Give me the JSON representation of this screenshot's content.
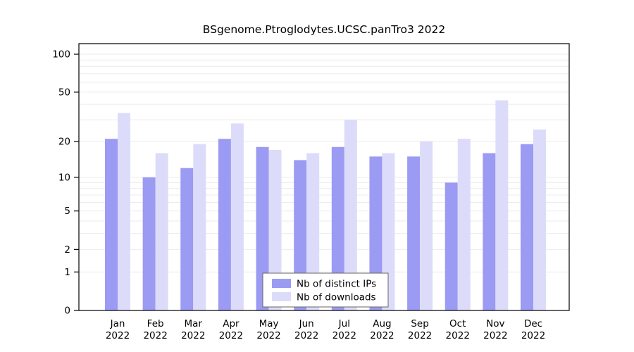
{
  "chart_data": {
    "type": "bar",
    "title": "BSgenome.Ptroglodytes.UCSC.panTro3 2022",
    "categories": [
      "Jan",
      "Feb",
      "Mar",
      "Apr",
      "May",
      "Jun",
      "Jul",
      "Aug",
      "Sep",
      "Oct",
      "Nov",
      "Dec"
    ],
    "x_year_label": "2022",
    "series": [
      {
        "name": "Nb of distinct IPs",
        "color": "#9b9bf3",
        "values": [
          21,
          10,
          12,
          21,
          18,
          14,
          18,
          15,
          15,
          9,
          16,
          19
        ]
      },
      {
        "name": "Nb of downloads",
        "color": "#dcdcfa",
        "values": [
          34,
          16,
          19,
          28,
          17,
          16,
          30,
          16,
          20,
          21,
          43,
          25
        ]
      }
    ],
    "y_ticks": [
      0,
      1,
      2,
      5,
      10,
      20,
      50,
      100
    ],
    "scale": "log1p",
    "ylim": [
      0,
      100
    ],
    "grid_values": [
      1,
      2,
      3,
      4,
      5,
      6,
      7,
      8,
      9,
      10,
      20,
      30,
      40,
      50,
      60,
      70,
      80,
      90,
      100
    ],
    "grid_color": "#ebebeb",
    "axis_color": "#000000",
    "legend_position": "bottom-center",
    "legend_border_color": "#666666"
  }
}
